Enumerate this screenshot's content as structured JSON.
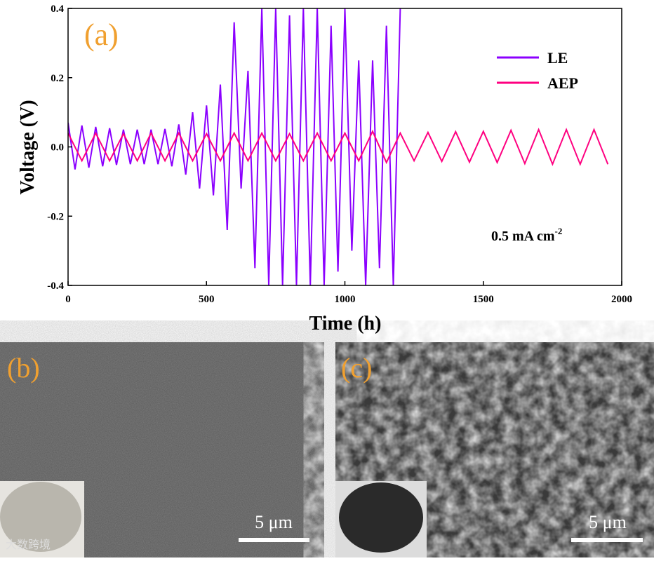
{
  "chart_data": {
    "type": "line",
    "panel_label": "(a)",
    "xlabel": "Time (h)",
    "ylabel": "Voltage (V)",
    "annotation": {
      "text": "0.5 mA cm",
      "superscript": "-2"
    },
    "xlim": [
      0,
      2000
    ],
    "xticks": [
      0,
      500,
      1000,
      1500,
      2000
    ],
    "ylim": [
      -0.4,
      0.4
    ],
    "yticks": [
      -0.4,
      -0.2,
      {
        "value": 0,
        "label": "0.0"
      },
      0.2,
      0.4
    ],
    "legend": "upper right",
    "grid": false,
    "series": [
      {
        "name": "LE",
        "color": "#8b00ff",
        "x": [
          0,
          25,
          50,
          75,
          100,
          125,
          150,
          175,
          200,
          225,
          250,
          275,
          300,
          325,
          350,
          375,
          400,
          425,
          450,
          475,
          500,
          525,
          550,
          575,
          600,
          625,
          650,
          675,
          700,
          725,
          750,
          775,
          800,
          825,
          850,
          875,
          900,
          925,
          950,
          975,
          1000,
          1025,
          1050,
          1075,
          1100,
          1125,
          1150,
          1175,
          1200
        ],
        "values": [
          0.07,
          -0.065,
          0.062,
          -0.06,
          0.058,
          -0.056,
          0.054,
          -0.052,
          0.05,
          -0.05,
          0.05,
          -0.05,
          0.05,
          -0.05,
          0.052,
          -0.056,
          0.065,
          -0.08,
          0.1,
          -0.12,
          0.12,
          -0.14,
          0.18,
          -0.24,
          0.36,
          -0.12,
          0.22,
          -0.35,
          0.4,
          -0.4,
          0.4,
          -0.4,
          0.38,
          -0.4,
          0.4,
          -0.4,
          0.4,
          -0.4,
          0.35,
          -0.36,
          0.4,
          -0.3,
          0.25,
          -0.4,
          0.25,
          -0.35,
          0.35,
          -0.4,
          0.4
        ]
      },
      {
        "name": "AEP",
        "color": "#ff0080",
        "x": [
          0,
          50,
          100,
          150,
          200,
          250,
          300,
          350,
          400,
          450,
          500,
          550,
          600,
          650,
          700,
          750,
          800,
          850,
          900,
          950,
          1000,
          1050,
          1100,
          1150,
          1200,
          1250,
          1300,
          1350,
          1400,
          1450,
          1500,
          1550,
          1600,
          1650,
          1700,
          1750,
          1800,
          1850,
          1900,
          1950
        ],
        "values": [
          0.04,
          -0.04,
          0.04,
          -0.04,
          0.038,
          -0.04,
          0.04,
          -0.04,
          0.04,
          -0.04,
          0.038,
          -0.04,
          0.04,
          -0.04,
          0.04,
          -0.04,
          0.038,
          -0.04,
          0.04,
          -0.04,
          0.04,
          -0.04,
          0.045,
          -0.045,
          0.04,
          -0.04,
          0.042,
          -0.042,
          0.044,
          -0.044,
          0.045,
          -0.045,
          0.048,
          -0.048,
          0.05,
          -0.05,
          0.05,
          -0.05,
          0.05,
          -0.05
        ]
      }
    ]
  },
  "panels": [
    {
      "label": "(b)",
      "scale_bar": "5 μm"
    },
    {
      "label": "(c)",
      "scale_bar": "5 μm"
    }
  ],
  "watermark": "大数跨境"
}
